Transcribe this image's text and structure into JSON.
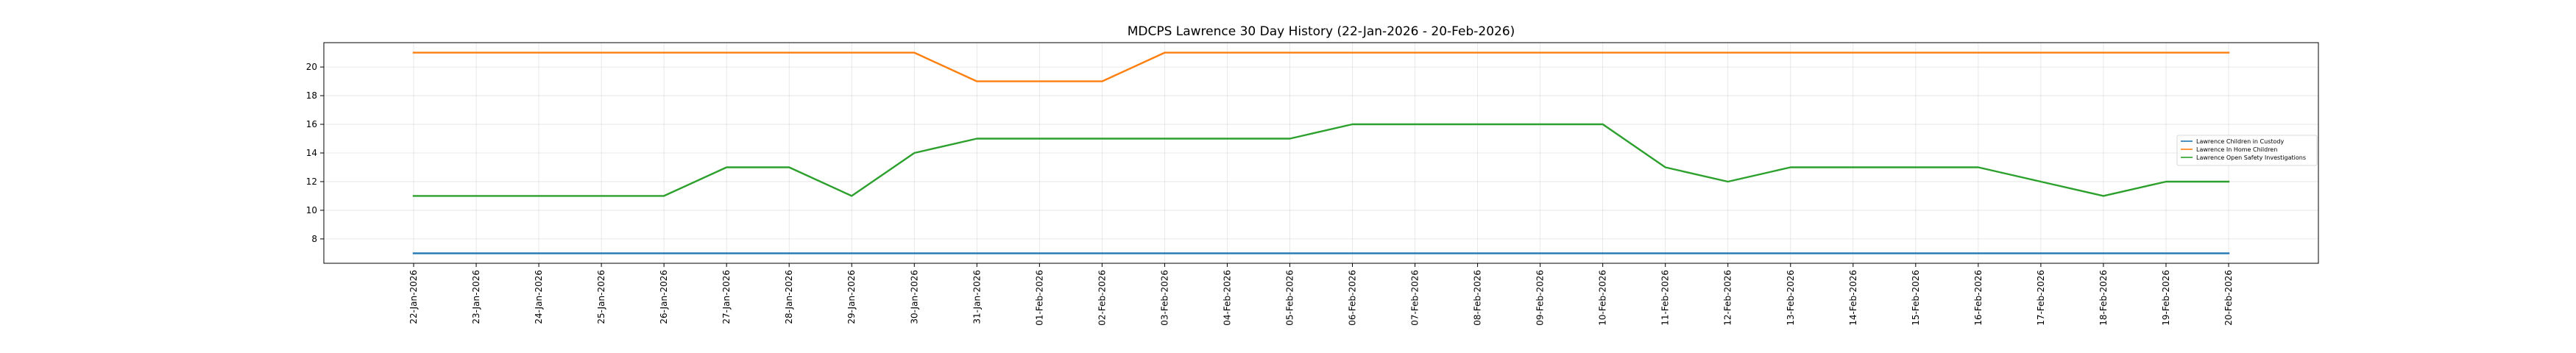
{
  "chart_data": {
    "type": "line",
    "title": "MDCPS Lawrence 30 Day History (22-Jan-2026 - 20-Feb-2026)",
    "xlabel": "",
    "ylabel": "",
    "categories": [
      "22-Jan-2026",
      "23-Jan-2026",
      "24-Jan-2026",
      "25-Jan-2026",
      "26-Jan-2026",
      "27-Jan-2026",
      "28-Jan-2026",
      "29-Jan-2026",
      "30-Jan-2026",
      "31-Jan-2026",
      "01-Feb-2026",
      "02-Feb-2026",
      "03-Feb-2026",
      "04-Feb-2026",
      "05-Feb-2026",
      "06-Feb-2026",
      "07-Feb-2026",
      "08-Feb-2026",
      "09-Feb-2026",
      "10-Feb-2026",
      "11-Feb-2026",
      "12-Feb-2026",
      "13-Feb-2026",
      "14-Feb-2026",
      "15-Feb-2026",
      "16-Feb-2026",
      "17-Feb-2026",
      "18-Feb-2026",
      "19-Feb-2026",
      "20-Feb-2026"
    ],
    "ylim": [
      6.3,
      21.7
    ],
    "yticks": [
      8,
      10,
      12,
      14,
      16,
      18,
      20
    ],
    "grid": true,
    "legend_position": "center-right",
    "series": [
      {
        "name": "Lawrence Children in Custody",
        "color": "#1f77b4",
        "values": [
          7,
          7,
          7,
          7,
          7,
          7,
          7,
          7,
          7,
          7,
          7,
          7,
          7,
          7,
          7,
          7,
          7,
          7,
          7,
          7,
          7,
          7,
          7,
          7,
          7,
          7,
          7,
          7,
          7,
          7
        ]
      },
      {
        "name": "Lawrence In Home Children",
        "color": "#ff7f0e",
        "values": [
          21,
          21,
          21,
          21,
          21,
          21,
          21,
          21,
          21,
          19,
          19,
          19,
          21,
          21,
          21,
          21,
          21,
          21,
          21,
          21,
          21,
          21,
          21,
          21,
          21,
          21,
          21,
          21,
          21,
          21
        ]
      },
      {
        "name": "Lawrence Open Safety Investigations",
        "color": "#2ca02c",
        "values": [
          11,
          11,
          11,
          11,
          11,
          13,
          13,
          11,
          14,
          15,
          15,
          15,
          15,
          15,
          15,
          16,
          16,
          16,
          16,
          16,
          13,
          12,
          13,
          13,
          13,
          13,
          12,
          11,
          12,
          12
        ]
      }
    ]
  }
}
